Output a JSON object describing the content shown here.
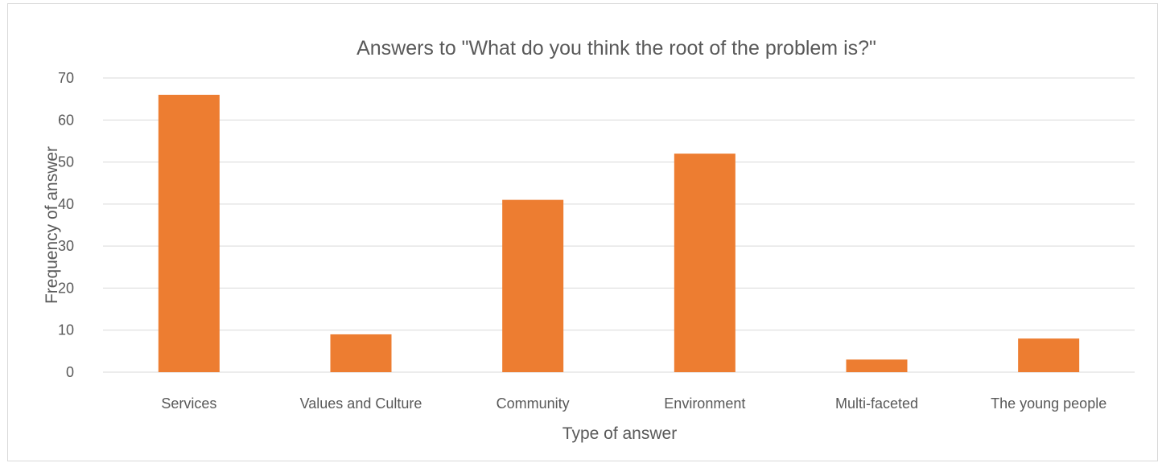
{
  "chart_data": {
    "type": "bar",
    "title": "Answers to \"What do you think the root of the problem is?\"",
    "xlabel": "Type of answer",
    "ylabel": "Frequency of answer",
    "categories": [
      "Services",
      "Values and Culture",
      "Community",
      "Environment",
      "Multi-faceted",
      "The young people"
    ],
    "values": [
      66,
      9,
      41,
      52,
      3,
      8
    ],
    "ylim": [
      0,
      70
    ],
    "yticks": [
      "0",
      "10",
      "20",
      "30",
      "40",
      "50",
      "60",
      "70"
    ],
    "grid": true,
    "legend": "none",
    "bar_color": "#ED7D31"
  }
}
